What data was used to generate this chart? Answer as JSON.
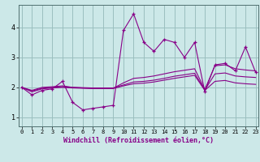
{
  "xlabel": "Windchill (Refroidissement éolien,°C)",
  "bg_color": "#cce8e8",
  "grid_color": "#9bbfbf",
  "line_color": "#880088",
  "x_ticks": [
    0,
    1,
    2,
    3,
    4,
    5,
    6,
    7,
    8,
    9,
    10,
    11,
    12,
    13,
    14,
    15,
    16,
    17,
    18,
    19,
    20,
    21,
    22,
    23
  ],
  "y_ticks": [
    1,
    2,
    3,
    4
  ],
  "ylim": [
    0.7,
    4.75
  ],
  "xlim": [
    -0.3,
    23.3
  ],
  "series_marked": [
    2.0,
    1.75,
    1.9,
    1.95,
    2.2,
    1.5,
    1.25,
    1.3,
    1.35,
    1.4,
    3.9,
    4.45,
    3.5,
    3.2,
    3.6,
    3.5,
    3.0,
    3.5,
    1.85,
    2.75,
    2.8,
    2.55,
    3.35,
    2.5
  ],
  "series_smooth": [
    [
      2.0,
      1.9,
      2.0,
      2.02,
      2.05,
      2.0,
      1.98,
      1.97,
      1.97,
      1.97,
      2.15,
      2.3,
      2.33,
      2.38,
      2.45,
      2.52,
      2.57,
      2.62,
      1.93,
      2.72,
      2.75,
      2.62,
      2.58,
      2.55
    ],
    [
      2.0,
      1.88,
      1.97,
      2.0,
      2.02,
      2.0,
      1.99,
      1.98,
      1.98,
      1.98,
      2.08,
      2.18,
      2.2,
      2.24,
      2.3,
      2.37,
      2.42,
      2.47,
      1.91,
      2.45,
      2.48,
      2.38,
      2.35,
      2.33
    ],
    [
      2.0,
      1.85,
      1.95,
      1.98,
      2.0,
      1.98,
      1.97,
      1.96,
      1.96,
      1.96,
      2.05,
      2.12,
      2.14,
      2.18,
      2.24,
      2.3,
      2.35,
      2.4,
      1.9,
      2.2,
      2.23,
      2.15,
      2.12,
      2.1
    ]
  ]
}
